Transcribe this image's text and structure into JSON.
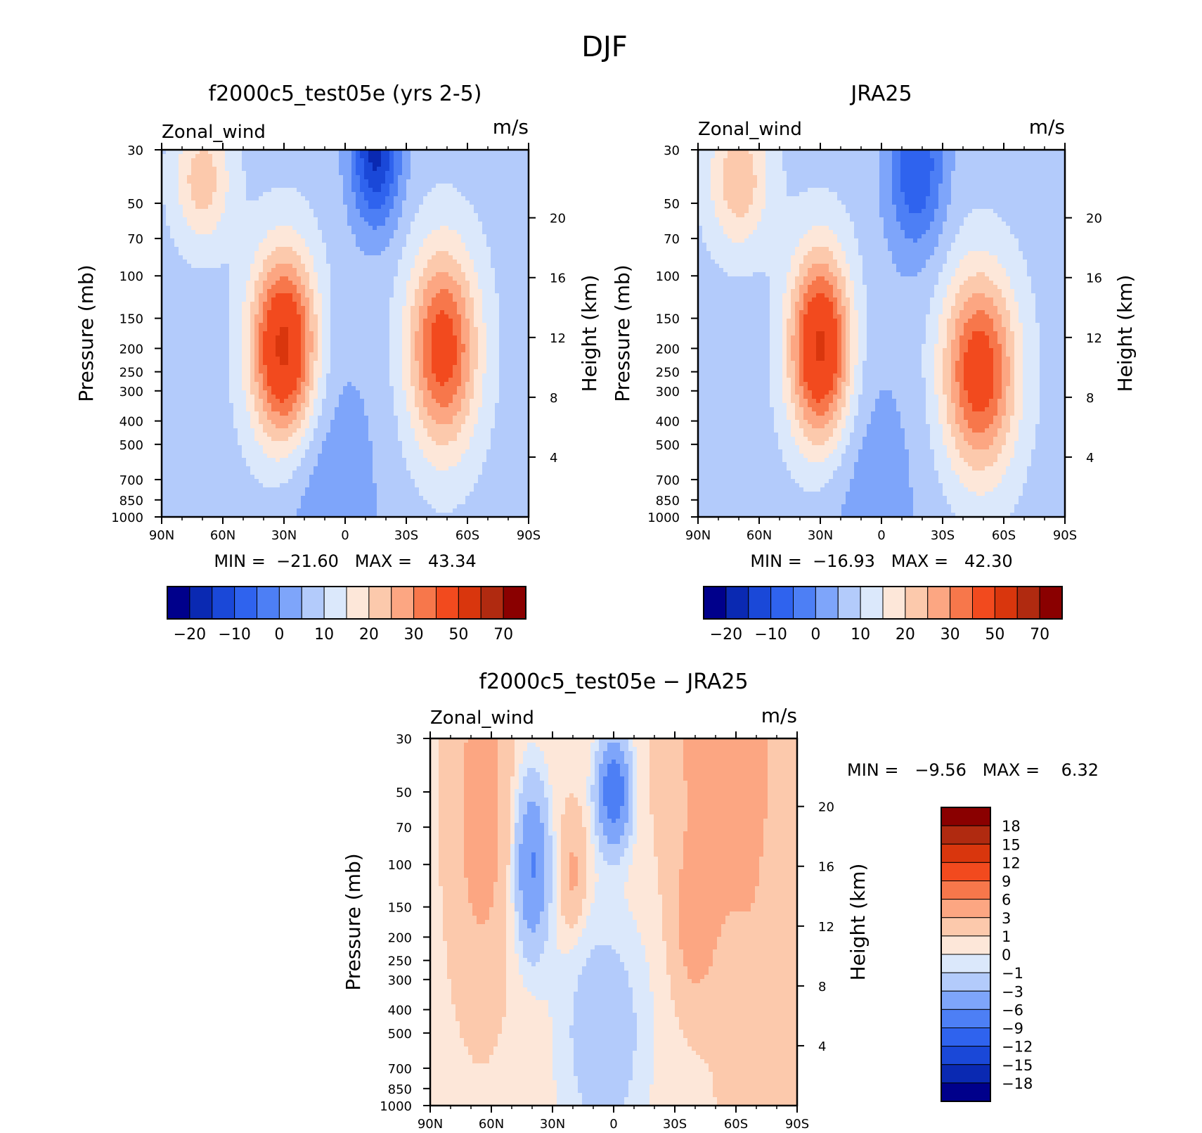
{
  "figure_title": "DJF",
  "chart_data": [
    {
      "type": "contour",
      "title": "f2000c5_test05e (yrs 2-5)",
      "left_label": "Zonal_wind",
      "right_label": "m/s",
      "xlabel": "",
      "ylabel": "Pressure (mb)",
      "y2label": "Height (km)",
      "x_ticks": [
        "90N",
        "60N",
        "30N",
        "0",
        "30S",
        "60S",
        "90S"
      ],
      "y_ticks": [
        "30",
        "50",
        "70",
        "100",
        "150",
        "200",
        "250",
        "300",
        "400",
        "500",
        "700",
        "850",
        "1000"
      ],
      "y2_ticks": [
        "20",
        "16",
        "12",
        "8",
        "4"
      ],
      "stats_text": "MIN =  −21.60   MAX =   43.34",
      "min": -21.6,
      "max": 43.34,
      "colorbar_labels": [
        "−20",
        "−10",
        "0",
        "10",
        "20",
        "30",
        "50",
        "70"
      ],
      "features": [
        {
          "lat": 30,
          "p": 200,
          "value": 43.34
        },
        {
          "lat": -48,
          "p": 200,
          "value": 34
        },
        {
          "lat": 70,
          "p": 40,
          "value": 20
        },
        {
          "lat": -15,
          "p": 30,
          "value": -21.6
        }
      ]
    },
    {
      "type": "contour",
      "title": "JRA25",
      "left_label": "Zonal_wind",
      "right_label": "m/s",
      "xlabel": "",
      "ylabel": "Pressure (mb)",
      "y2label": "Height (km)",
      "x_ticks": [
        "90N",
        "60N",
        "30N",
        "0",
        "30S",
        "60S",
        "90S"
      ],
      "y_ticks": [
        "30",
        "50",
        "70",
        "100",
        "150",
        "200",
        "250",
        "300",
        "400",
        "500",
        "700",
        "850",
        "1000"
      ],
      "y2_ticks": [
        "20",
        "16",
        "12",
        "8",
        "4"
      ],
      "stats_text": "MIN =  −16.93   MAX =   42.30",
      "min": -16.93,
      "max": 42.3,
      "colorbar_labels": [
        "−20",
        "−10",
        "0",
        "10",
        "20",
        "30",
        "50",
        "70"
      ],
      "features": [
        {
          "lat": 30,
          "p": 200,
          "value": 42.3
        },
        {
          "lat": -48,
          "p": 250,
          "value": 36
        },
        {
          "lat": 70,
          "p": 40,
          "value": 20
        },
        {
          "lat": -17,
          "p": 35,
          "value": -16.93
        }
      ]
    },
    {
      "type": "contour",
      "title": "f2000c5_test05e − JRA25",
      "left_label": "Zonal_wind",
      "right_label": "m/s",
      "xlabel": "",
      "ylabel": "Pressure (mb)",
      "y2label": "Height (km)",
      "x_ticks": [
        "90N",
        "60N",
        "30N",
        "0",
        "30S",
        "60S",
        "90S"
      ],
      "y_ticks": [
        "30",
        "50",
        "70",
        "100",
        "150",
        "200",
        "250",
        "300",
        "400",
        "500",
        "700",
        "850",
        "1000"
      ],
      "y2_ticks": [
        "20",
        "16",
        "12",
        "8",
        "4"
      ],
      "stats_text": "MIN =   −9.56   MAX =    6.32",
      "min": -9.56,
      "max": 6.32,
      "colorbar_labels": [
        "18",
        "15",
        "12",
        "9",
        "6",
        "3",
        "1",
        "0",
        "−1",
        "−3",
        "−6",
        "−9",
        "−12",
        "−15",
        "−18"
      ],
      "features": [
        {
          "lat": 0,
          "p": 50,
          "value": -9.56
        },
        {
          "lat": 40,
          "p": 100,
          "value": -5
        },
        {
          "lat": -55,
          "p": 30,
          "value": 6.32
        },
        {
          "lat": -40,
          "p": 150,
          "value": 4
        }
      ]
    }
  ],
  "colors": {
    "wind_scale": [
      "#00008b",
      "#0a29b2",
      "#1a48d8",
      "#2f63ee",
      "#4d7ff5",
      "#7ea5fa",
      "#b3cbfb",
      "#dbe8fb",
      "#fde7d9",
      "#fcc9ac",
      "#fca682",
      "#f7774b",
      "#f24a1e",
      "#d9360d",
      "#b02a10",
      "#8a0000"
    ],
    "diff_scale_top_to_bottom": [
      "#8a0000",
      "#b02a10",
      "#d9360d",
      "#f24a1e",
      "#f7774b",
      "#fca682",
      "#fcc9ac",
      "#fde7d9",
      "#dbe8fb",
      "#b3cbfb",
      "#7ea5fa",
      "#4d7ff5",
      "#2f63ee",
      "#1a48d8",
      "#0a29b2",
      "#00008b"
    ]
  }
}
